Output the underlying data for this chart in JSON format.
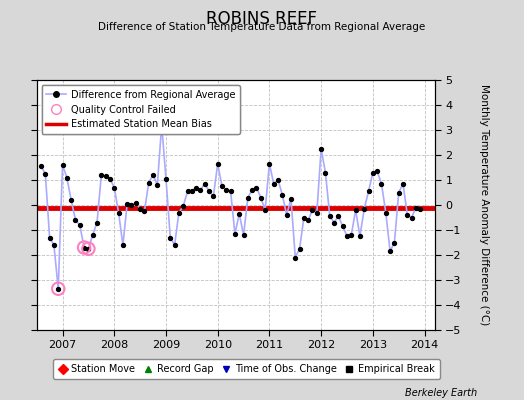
{
  "title": "ROBINS REEF",
  "subtitle": "Difference of Station Temperature Data from Regional Average",
  "ylabel": "Monthly Temperature Anomaly Difference (°C)",
  "xlabel_years": [
    2007,
    2008,
    2009,
    2010,
    2011,
    2012,
    2013,
    2014
  ],
  "xlim": [
    2006.5,
    2014.2
  ],
  "ylim": [
    -5,
    5
  ],
  "bias_value": -0.1,
  "bias_color": "#dd0000",
  "line_color": "#aaaaff",
  "marker_color": "#000000",
  "bg_color": "#d8d8d8",
  "plot_bg_color": "#ffffff",
  "grid_color": "#c0c0c0",
  "berkeley_earth_text": "Berkeley Earth",
  "qc_marker_color": "#ff80c0",
  "series": [
    [
      2006.583,
      1.55
    ],
    [
      2006.667,
      1.25
    ],
    [
      2006.75,
      -1.3
    ],
    [
      2006.833,
      -1.6
    ],
    [
      2006.917,
      -3.35
    ],
    [
      2007.0,
      1.6
    ],
    [
      2007.083,
      1.1
    ],
    [
      2007.167,
      0.2
    ],
    [
      2007.25,
      -0.6
    ],
    [
      2007.333,
      -0.8
    ],
    [
      2007.417,
      -1.7
    ],
    [
      2007.5,
      -1.75
    ],
    [
      2007.583,
      -1.2
    ],
    [
      2007.667,
      -0.7
    ],
    [
      2007.75,
      1.2
    ],
    [
      2007.833,
      1.15
    ],
    [
      2007.917,
      1.05
    ],
    [
      2008.0,
      0.7
    ],
    [
      2008.083,
      -0.3
    ],
    [
      2008.167,
      -1.6
    ],
    [
      2008.25,
      0.05
    ],
    [
      2008.333,
      0.0
    ],
    [
      2008.417,
      0.1
    ],
    [
      2008.5,
      -0.15
    ],
    [
      2008.583,
      -0.25
    ],
    [
      2008.667,
      0.9
    ],
    [
      2008.75,
      1.2
    ],
    [
      2008.833,
      0.8
    ],
    [
      2008.917,
      3.2
    ],
    [
      2009.0,
      1.05
    ],
    [
      2009.083,
      -1.3
    ],
    [
      2009.167,
      -1.6
    ],
    [
      2009.25,
      -0.3
    ],
    [
      2009.333,
      -0.05
    ],
    [
      2009.417,
      0.55
    ],
    [
      2009.5,
      0.55
    ],
    [
      2009.583,
      0.7
    ],
    [
      2009.667,
      0.6
    ],
    [
      2009.75,
      0.85
    ],
    [
      2009.833,
      0.55
    ],
    [
      2009.917,
      0.35
    ],
    [
      2010.0,
      1.65
    ],
    [
      2010.083,
      0.75
    ],
    [
      2010.167,
      0.6
    ],
    [
      2010.25,
      0.55
    ],
    [
      2010.333,
      -1.15
    ],
    [
      2010.417,
      -0.35
    ],
    [
      2010.5,
      -1.2
    ],
    [
      2010.583,
      0.3
    ],
    [
      2010.667,
      0.6
    ],
    [
      2010.75,
      0.7
    ],
    [
      2010.833,
      0.3
    ],
    [
      2010.917,
      -0.2
    ],
    [
      2011.0,
      1.65
    ],
    [
      2011.083,
      0.85
    ],
    [
      2011.167,
      1.0
    ],
    [
      2011.25,
      0.4
    ],
    [
      2011.333,
      -0.4
    ],
    [
      2011.417,
      0.25
    ],
    [
      2011.5,
      -2.1
    ],
    [
      2011.583,
      -1.75
    ],
    [
      2011.667,
      -0.5
    ],
    [
      2011.75,
      -0.6
    ],
    [
      2011.833,
      -0.2
    ],
    [
      2011.917,
      -0.3
    ],
    [
      2012.0,
      2.25
    ],
    [
      2012.083,
      1.3
    ],
    [
      2012.167,
      -0.45
    ],
    [
      2012.25,
      -0.7
    ],
    [
      2012.333,
      -0.45
    ],
    [
      2012.417,
      -0.85
    ],
    [
      2012.5,
      -1.25
    ],
    [
      2012.583,
      -1.2
    ],
    [
      2012.667,
      -0.2
    ],
    [
      2012.75,
      -1.25
    ],
    [
      2012.833,
      -0.15
    ],
    [
      2012.917,
      0.55
    ],
    [
      2013.0,
      1.3
    ],
    [
      2013.083,
      1.35
    ],
    [
      2013.167,
      0.85
    ],
    [
      2013.25,
      -0.3
    ],
    [
      2013.333,
      -1.85
    ],
    [
      2013.417,
      -1.5
    ],
    [
      2013.5,
      0.5
    ],
    [
      2013.583,
      0.85
    ],
    [
      2013.667,
      -0.4
    ],
    [
      2013.75,
      -0.5
    ],
    [
      2013.833,
      -0.1
    ],
    [
      2013.917,
      -0.15
    ]
  ],
  "qc_failed_points": [
    [
      2006.917,
      -3.35
    ],
    [
      2007.417,
      -1.7
    ],
    [
      2007.5,
      -1.75
    ],
    [
      2008.917,
      3.2
    ]
  ]
}
